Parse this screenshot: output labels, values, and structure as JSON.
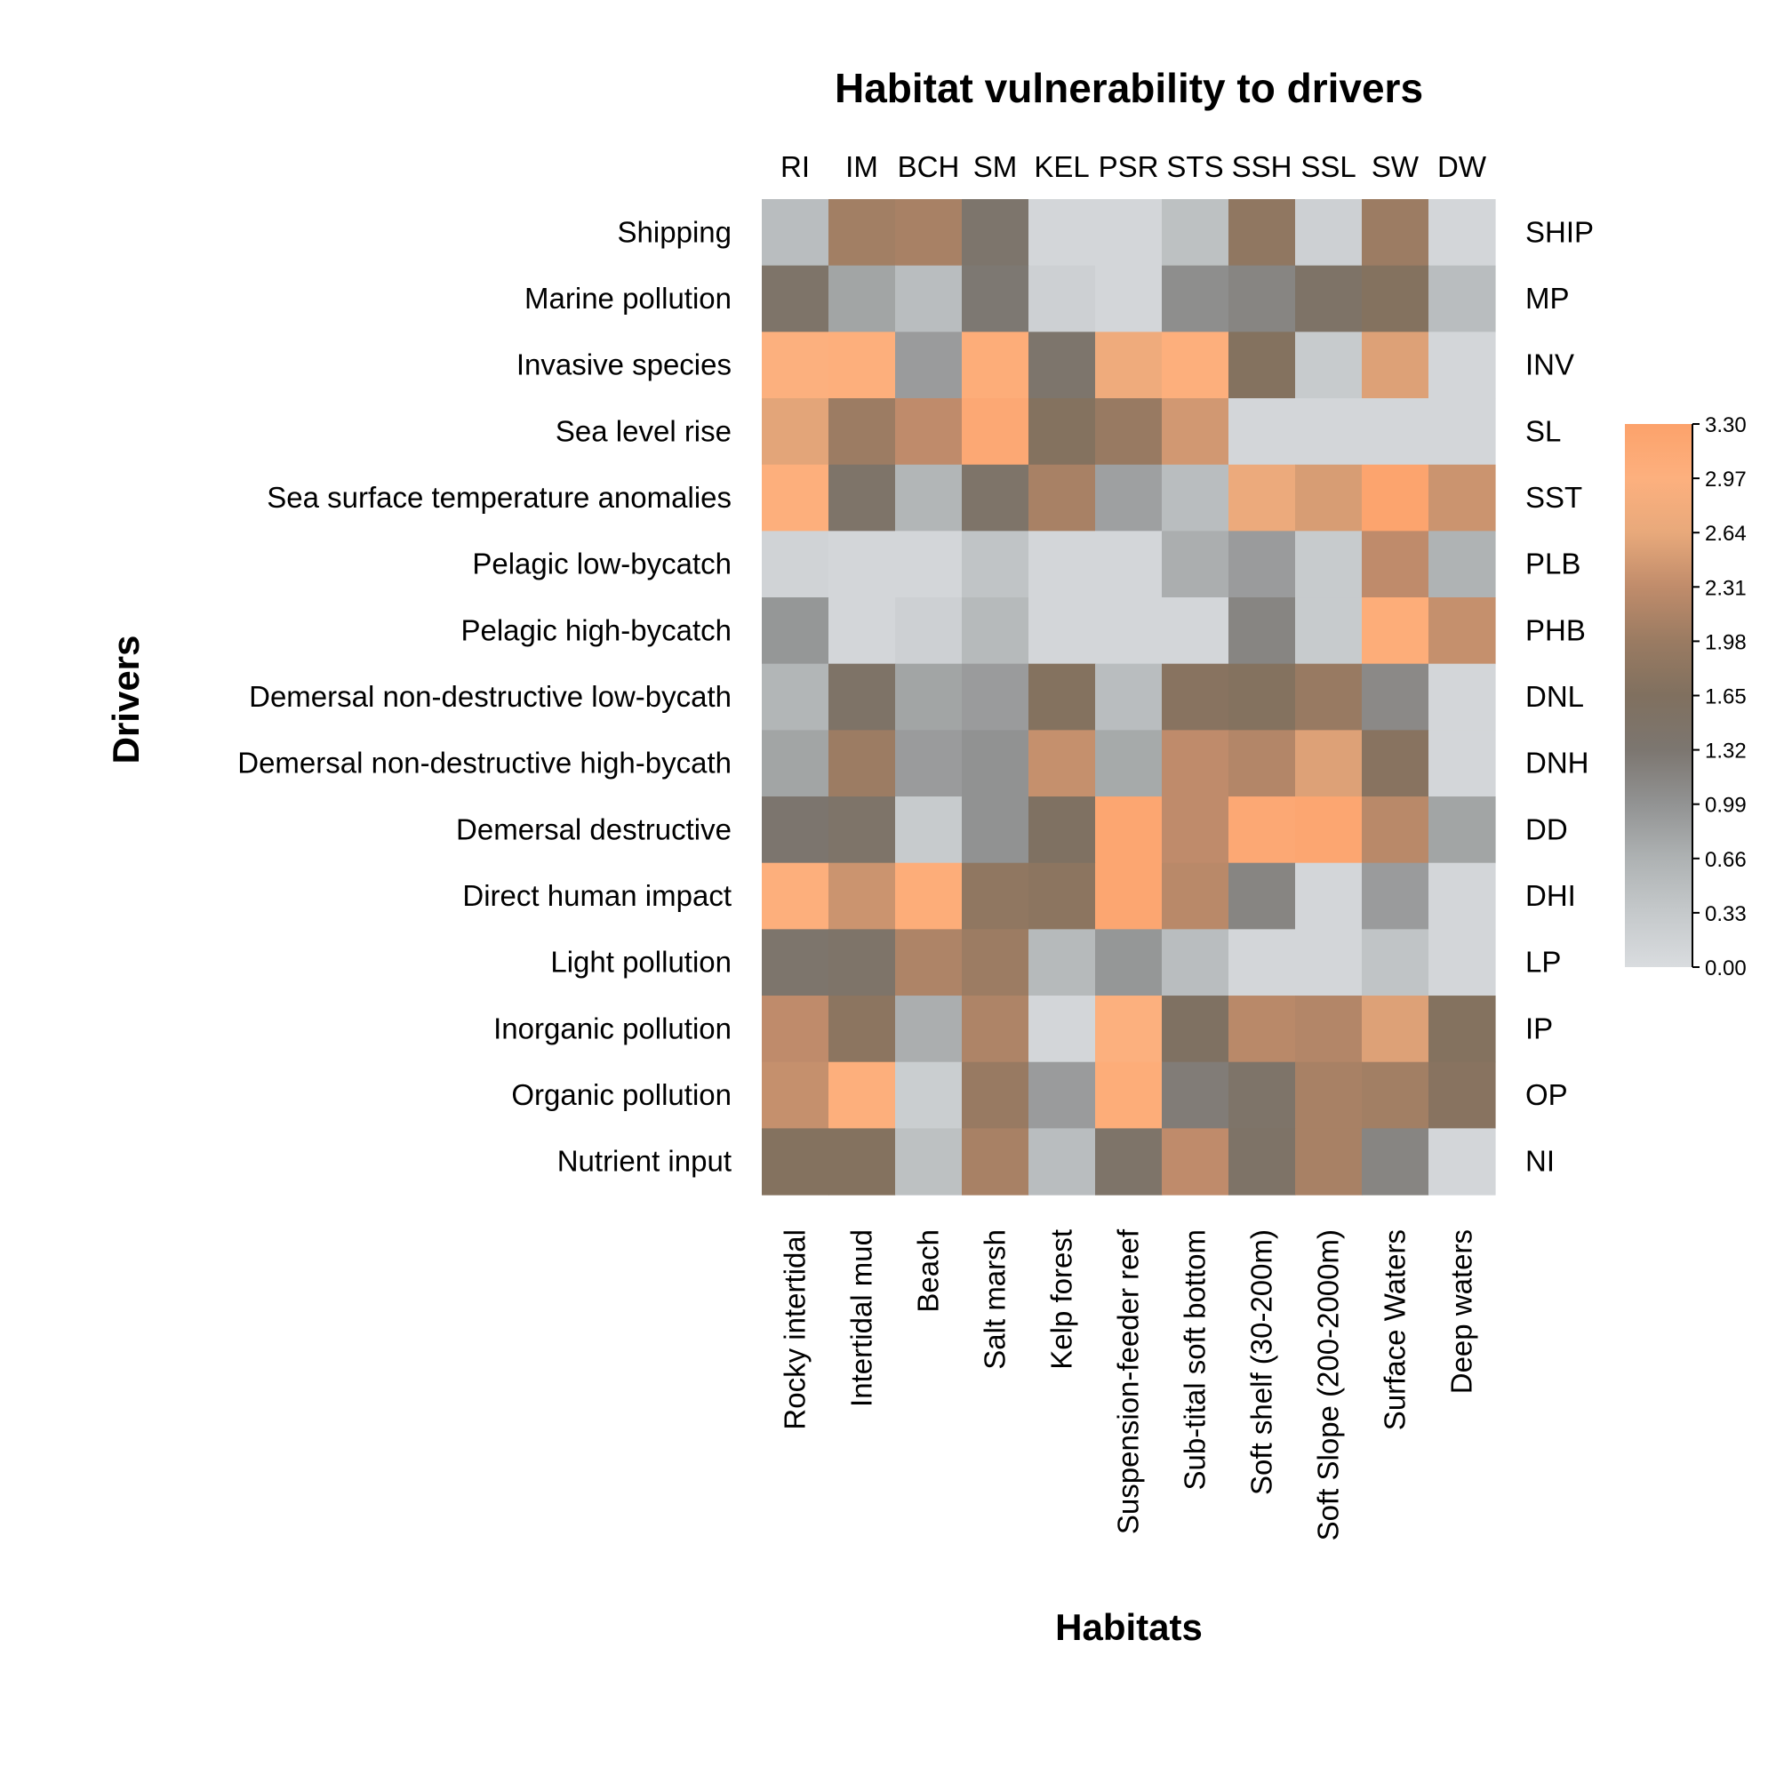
{
  "chart_data": {
    "type": "heatmap",
    "title": "Habitat vulnerability to drivers",
    "xlabel": "Habitats",
    "ylabel": "Drivers",
    "columns": [
      "Rocky intertidal",
      "Intertidal mud",
      "Beach",
      "Salt marsh",
      "Kelp forest",
      "Suspension-feeder reef",
      "Sub-tital soft bottom",
      "Soft shelf (30-200m)",
      "Soft Slope (200-2000m)",
      "Surface Waters",
      "Deep waters"
    ],
    "column_codes": [
      "RI",
      "IM",
      "BCH",
      "SM",
      "KEL",
      "PSR",
      "STS",
      "SSH",
      "SSL",
      "SW",
      "DW"
    ],
    "rows": [
      "Shipping",
      "Marine pollution",
      "Invasive species",
      "Sea level rise",
      "Sea surface temperature anomalies",
      "Pelagic low-bycatch",
      "Pelagic high-bycatch",
      "Demersal non-destructive low-bycath",
      "Demersal non-destructive high-bycath",
      "Demersal destructive",
      "Direct human impact",
      "Light pollution",
      "Inorganic pollution",
      "Organic pollution",
      "Nutrient input"
    ],
    "row_codes": [
      "SHIP",
      "MP",
      "INV",
      "SL",
      "SST",
      "PLB",
      "PHB",
      "DNL",
      "DNH",
      "DD",
      "DHI",
      "LP",
      "IP",
      "OP",
      "NI"
    ],
    "values": [
      [
        0.5,
        2.05,
        2.1,
        1.4,
        0.1,
        0.1,
        0.45,
        1.85,
        0.2,
        2.0,
        0.1
      ],
      [
        1.45,
        0.8,
        0.5,
        1.3,
        0.2,
        0.1,
        1.05,
        1.15,
        1.5,
        1.7,
        0.5
      ],
      [
        2.95,
        3.0,
        0.9,
        3.05,
        1.4,
        2.75,
        3.0,
        1.7,
        0.3,
        2.55,
        0.1
      ],
      [
        2.6,
        2.0,
        2.3,
        3.15,
        1.7,
        1.95,
        2.45,
        0.1,
        0.1,
        0.1,
        0.1
      ],
      [
        3.0,
        1.45,
        0.6,
        1.45,
        2.1,
        0.85,
        0.5,
        2.7,
        2.5,
        3.25,
        2.4
      ],
      [
        0.15,
        0.1,
        0.1,
        0.4,
        0.1,
        0.1,
        0.7,
        0.9,
        0.3,
        2.3,
        0.65
      ],
      [
        0.95,
        0.1,
        0.2,
        0.55,
        0.1,
        0.1,
        0.1,
        1.15,
        0.3,
        3.05,
        2.35
      ],
      [
        0.6,
        1.5,
        0.8,
        0.9,
        1.7,
        0.5,
        1.75,
        1.7,
        1.95,
        1.1,
        0.1
      ],
      [
        0.8,
        2.0,
        0.9,
        1.0,
        2.35,
        0.75,
        2.3,
        2.2,
        2.55,
        1.75,
        0.1
      ],
      [
        1.35,
        1.45,
        0.3,
        1.0,
        1.6,
        3.2,
        2.3,
        3.15,
        3.2,
        2.25,
        0.8
      ],
      [
        3.0,
        2.4,
        3.05,
        1.85,
        1.8,
        3.2,
        2.25,
        1.15,
        0.1,
        0.9,
        0.1
      ],
      [
        1.4,
        1.45,
        2.15,
        2.0,
        0.55,
        0.95,
        0.5,
        0.1,
        0.1,
        0.4,
        0.1
      ],
      [
        2.3,
        1.8,
        0.7,
        2.15,
        0.1,
        2.95,
        1.6,
        2.25,
        2.2,
        2.55,
        1.7
      ],
      [
        2.35,
        3.0,
        0.25,
        1.95,
        0.9,
        3.05,
        1.25,
        1.45,
        2.1,
        2.05,
        1.75
      ],
      [
        1.7,
        1.7,
        0.45,
        2.1,
        0.5,
        1.45,
        2.3,
        1.5,
        2.1,
        1.15,
        0.1
      ]
    ],
    "colorbar": {
      "range": [
        0.0,
        3.3
      ],
      "ticks": [
        "0.00",
        "0.33",
        "0.66",
        "0.99",
        "1.32",
        "1.65",
        "1.98",
        "2.31",
        "2.64",
        "2.97",
        "3.30"
      ],
      "colors": [
        "#d9dcdf",
        "#c5c9cb",
        "#aeb2b3",
        "#929393",
        "#7c7670",
        "#80705f",
        "#9a7b62",
        "#c08c6b",
        "#e8a97b",
        "#fdb07e",
        "#fca26b"
      ]
    }
  }
}
